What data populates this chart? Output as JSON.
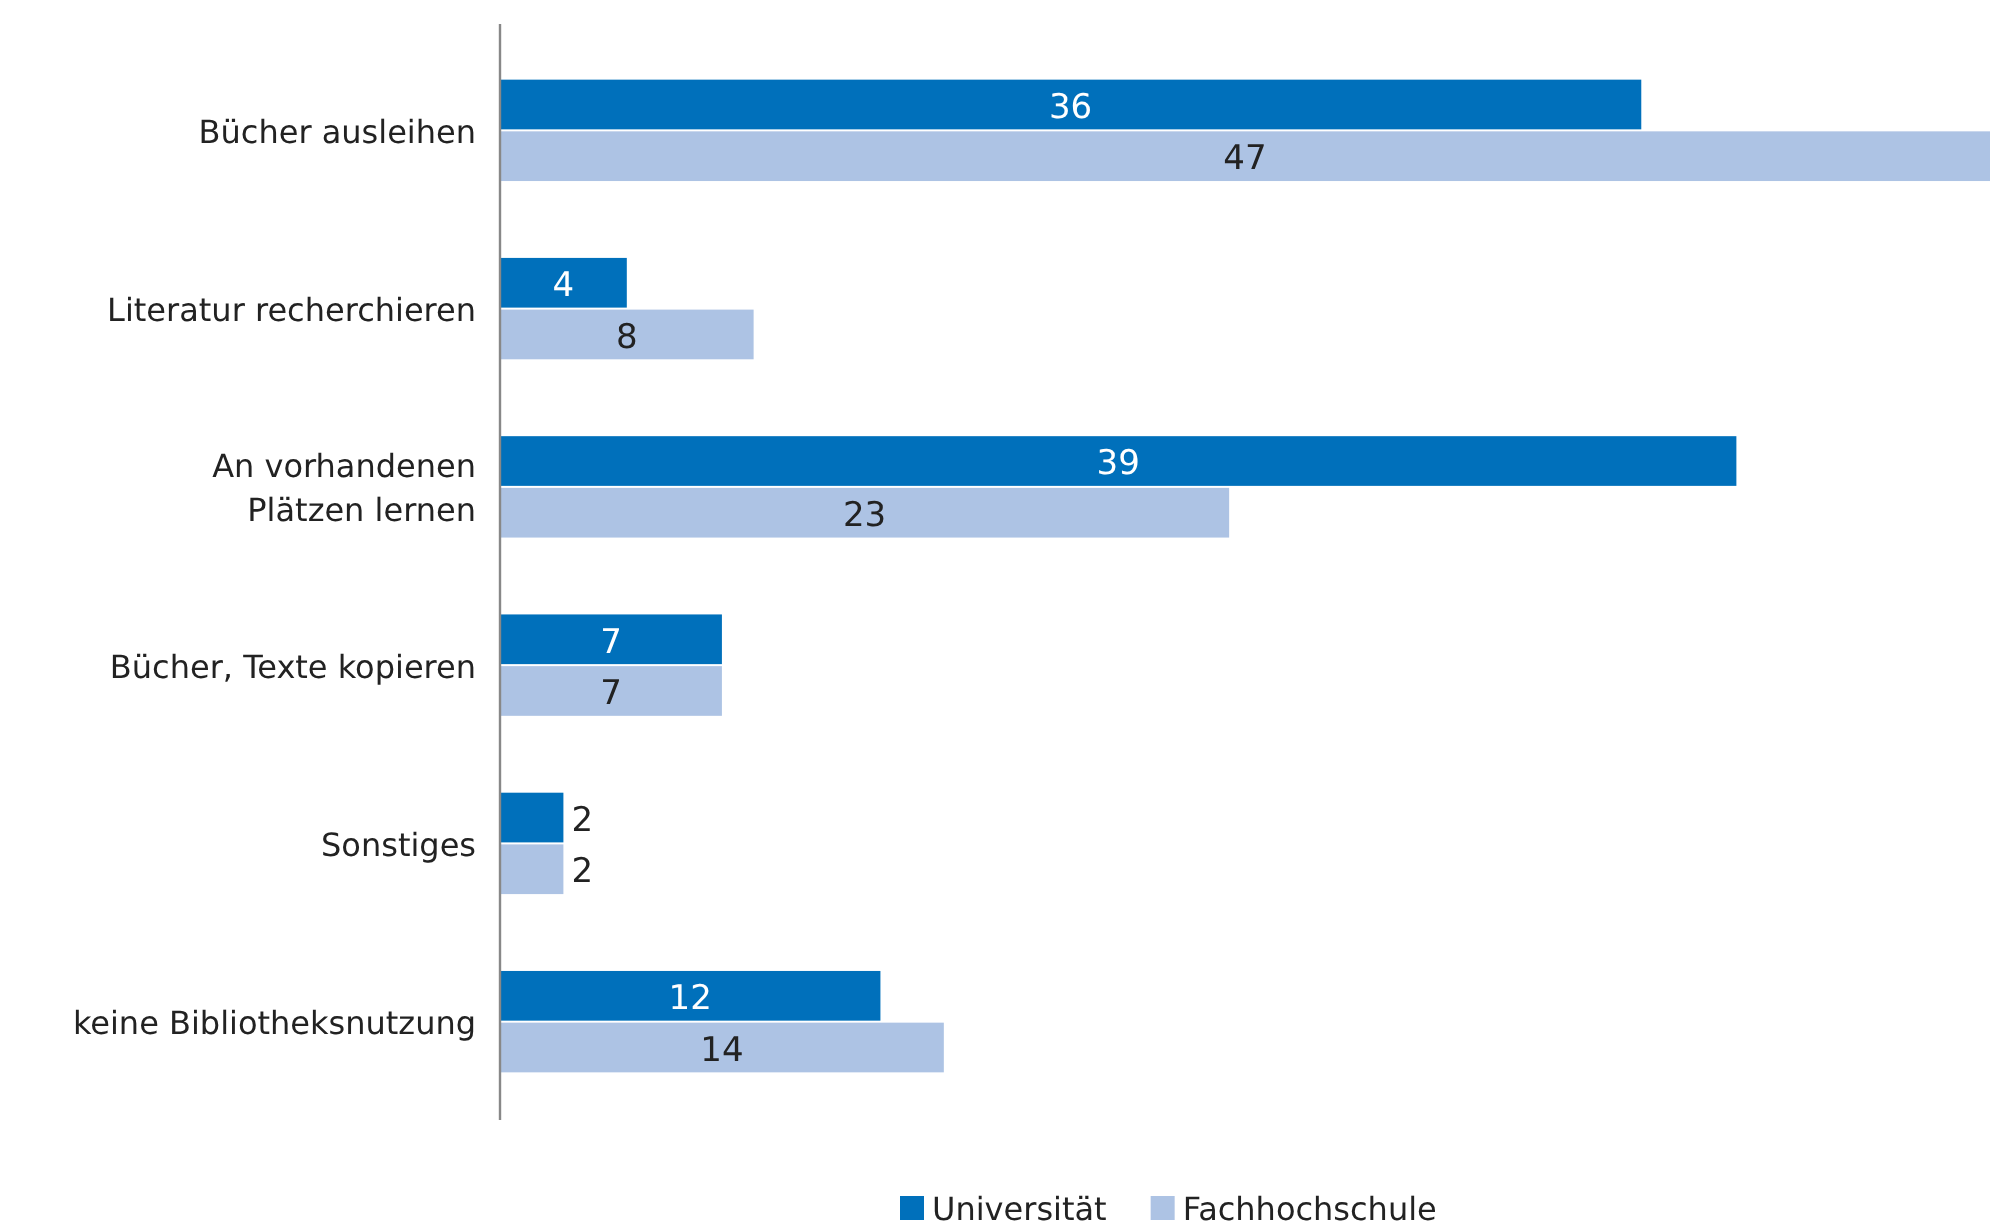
{
  "chart_data": {
    "type": "bar",
    "orientation": "horizontal",
    "categories": [
      "Bücher ausleihen",
      "Literatur recherchieren",
      "An vorhandenen\nPlätzen lernen",
      "Bücher, Texte kopieren",
      "Sonstiges",
      "keine Bibliotheksnutzung"
    ],
    "series": [
      {
        "name": "Universität",
        "color": "#0070bb",
        "values": [
          36,
          4,
          39,
          7,
          2,
          12
        ]
      },
      {
        "name": "Fachhochschule",
        "color": "#adc3e4",
        "values": [
          47,
          8,
          23,
          7,
          2,
          14
        ]
      }
    ],
    "xlim": [
      0,
      47
    ],
    "tick_labels": "y",
    "data_labels": true,
    "legend": "bottom",
    "grid": false
  }
}
